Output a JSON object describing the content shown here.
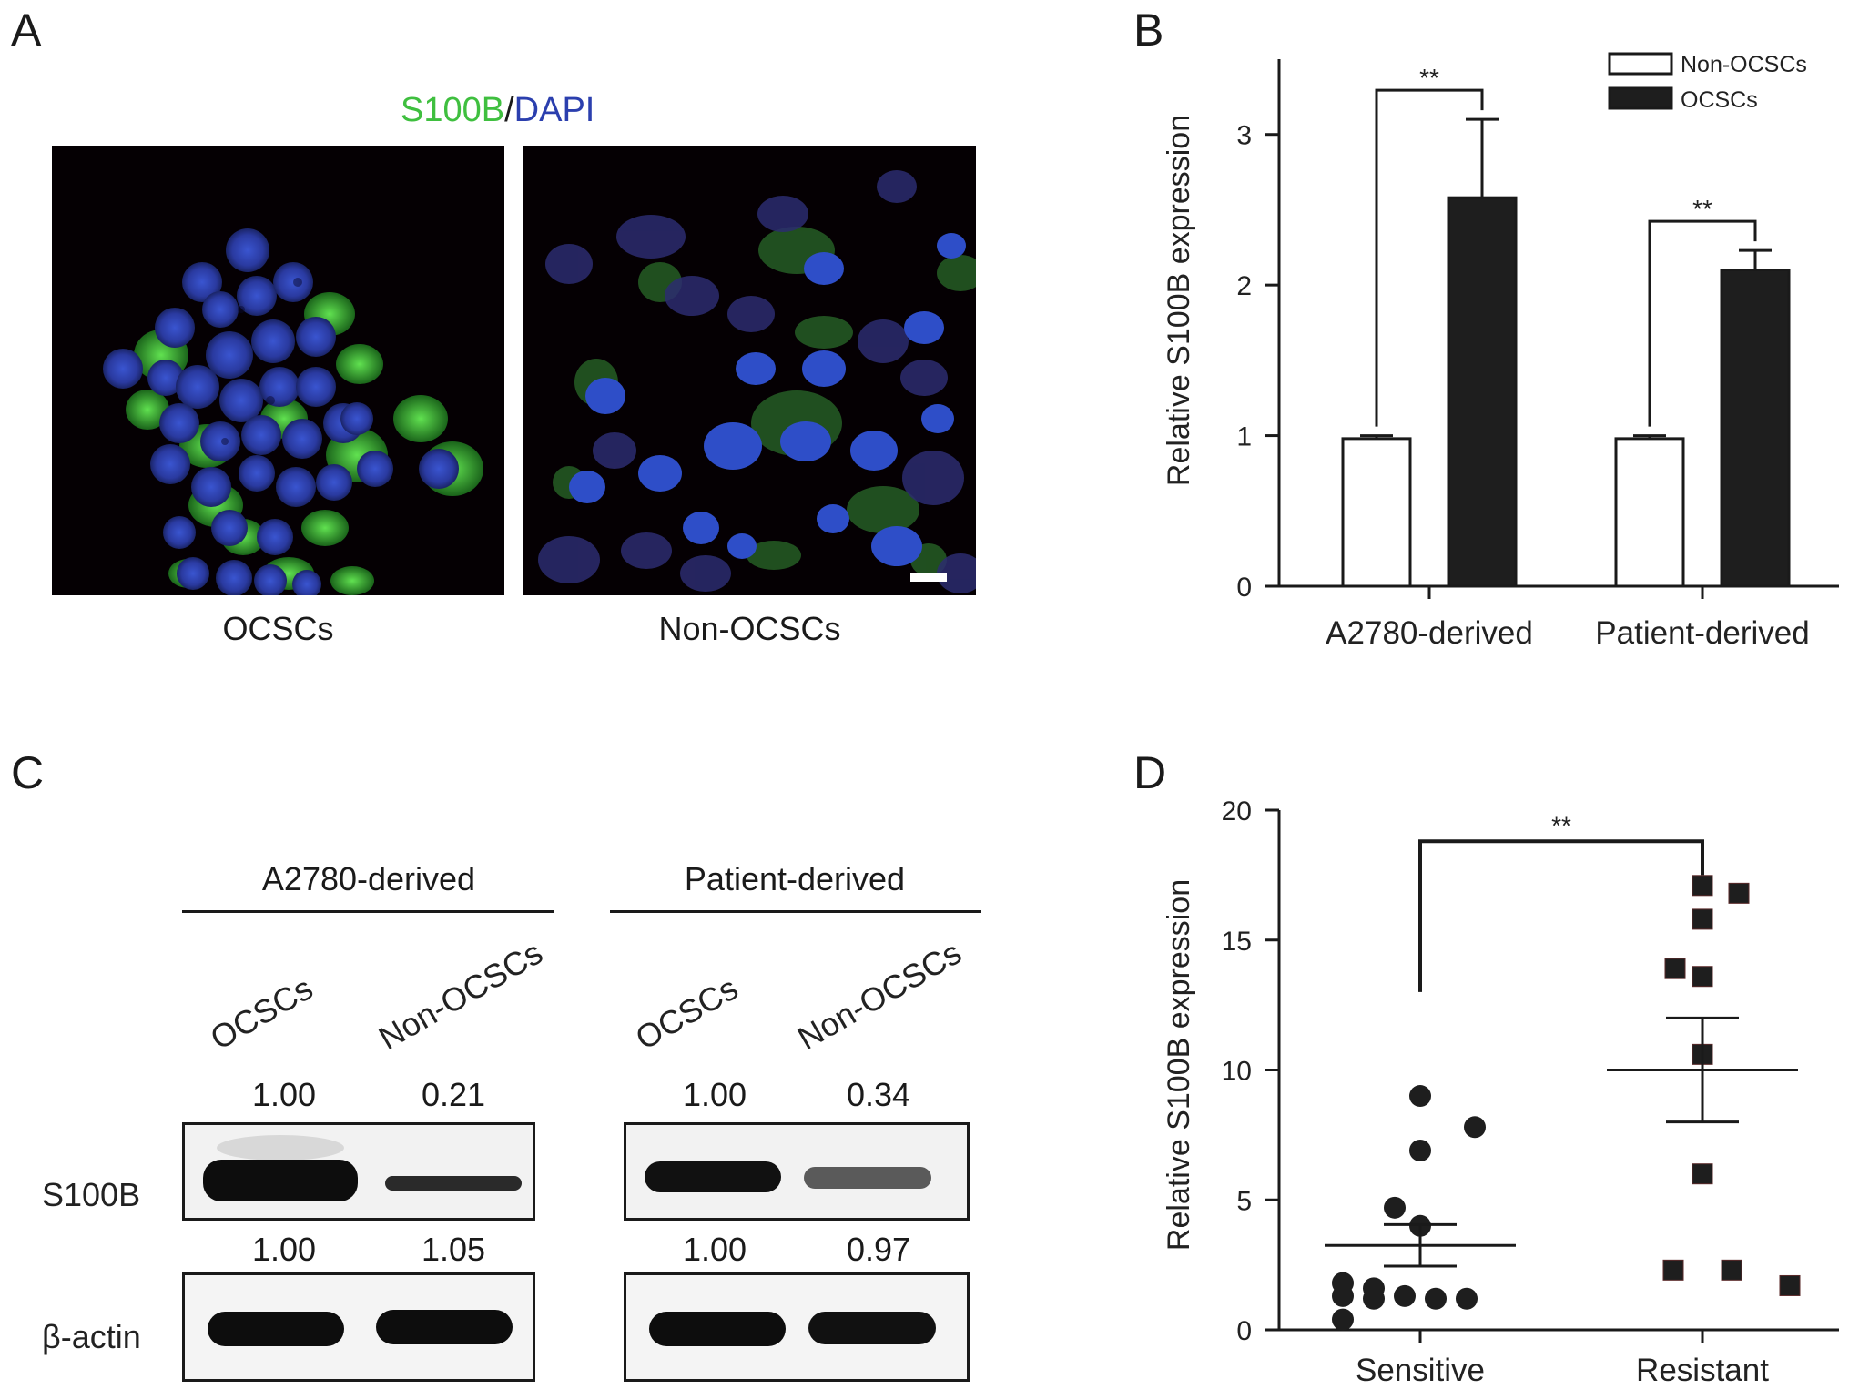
{
  "panelA": {
    "letter": "A",
    "stain": {
      "s100b": "S100B",
      "slash": "/",
      "dapi": "DAPI"
    },
    "colors": {
      "s100b": "#3fbf3f",
      "dapi": "#2b3fae"
    },
    "image1_caption": "OCSCs",
    "image2_caption": "Non-OCSCs"
  },
  "panelB": {
    "letter": "B",
    "legend": [
      "Non-OCSCs",
      "OCSCs"
    ],
    "sig": [
      "**",
      "**"
    ]
  },
  "panelC": {
    "letter": "C",
    "groups": [
      {
        "title": "A2780-derived",
        "lanes": [
          "OCSCs",
          "Non-OCSCs"
        ],
        "s100b": [
          "1.00",
          "0.21"
        ],
        "actin": [
          "1.00",
          "1.05"
        ]
      },
      {
        "title": "Patient-derived",
        "lanes": [
          "OCSCs",
          "Non-OCSCs"
        ],
        "s100b": [
          "1.00",
          "0.34"
        ],
        "actin": [
          "1.00",
          "0.97"
        ]
      }
    ],
    "rows": [
      "S100B",
      "β-actin"
    ]
  },
  "panelD": {
    "letter": "D",
    "sig": "**"
  },
  "chart_data": [
    {
      "type": "bar",
      "title": "",
      "xlabel": "",
      "ylabel": "Relative S100B expression",
      "ylim": [
        0,
        3.5
      ],
      "yticks": [
        0,
        1,
        2,
        3
      ],
      "categories": [
        "A2780-derived",
        "Patient-derived"
      ],
      "series": [
        {
          "name": "Non-OCSCs",
          "values": [
            0.98,
            0.98
          ],
          "errors": [
            0.02,
            0.02
          ],
          "color": "#ffffff"
        },
        {
          "name": "OCSCs",
          "values": [
            2.58,
            2.1
          ],
          "errors": [
            0.52,
            0.13
          ],
          "color": "#1e1e1e"
        }
      ],
      "legend": "top-right",
      "grid": false
    },
    {
      "type": "scatter",
      "title": "",
      "xlabel": "",
      "ylabel": "Relative S100B expression",
      "ylim": [
        0,
        20
      ],
      "yticks": [
        0,
        5,
        10,
        15,
        20
      ],
      "categories": [
        "Sensitive",
        "Resistant"
      ],
      "series": [
        {
          "category": "Sensitive",
          "marker": "circle",
          "points": [
            9.0,
            7.8,
            6.9,
            4.7,
            4.0,
            1.3,
            1.2,
            1.3,
            1.8,
            1.6,
            1.2,
            1.2,
            0.4
          ],
          "mean": 3.25,
          "sem_low": 2.45,
          "sem_high": 4.05
        },
        {
          "category": "Resistant",
          "marker": "square",
          "points": [
            17.1,
            16.8,
            15.8,
            13.9,
            13.6,
            10.6,
            6.0,
            2.3,
            2.3,
            1.7
          ],
          "mean": 10.0,
          "sem_low": 8.0,
          "sem_high": 12.0
        }
      ],
      "grid": false
    }
  ]
}
